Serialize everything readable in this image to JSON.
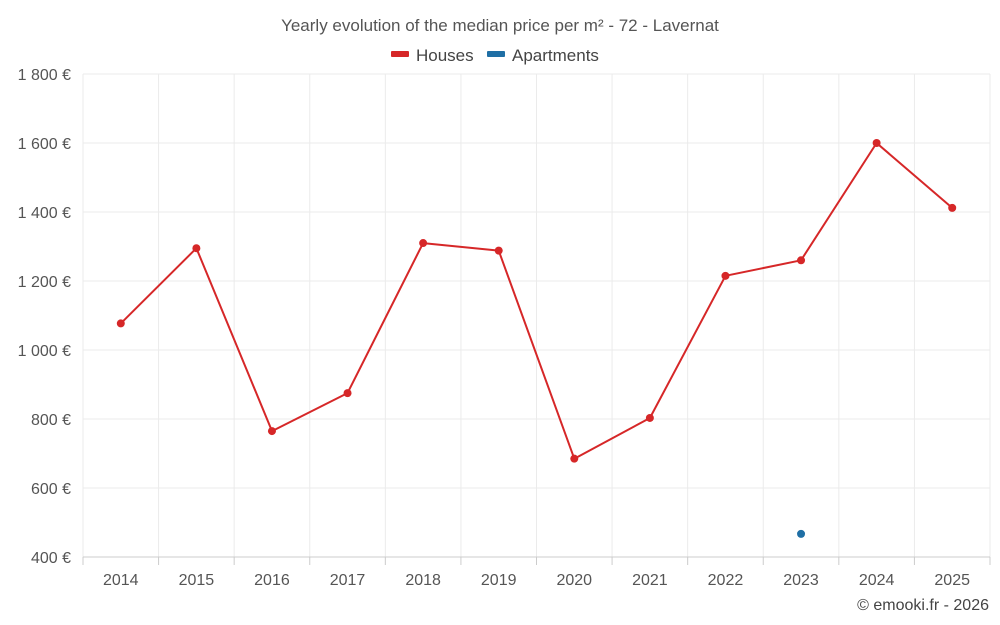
{
  "chart_data": {
    "type": "line",
    "title": "Yearly evolution of the median price per m² - 72 - Lavernat",
    "categories": [
      "2014",
      "2015",
      "2016",
      "2017",
      "2018",
      "2019",
      "2020",
      "2021",
      "2022",
      "2023",
      "2024",
      "2025"
    ],
    "series": [
      {
        "name": "Houses",
        "color": "#d62728",
        "values": [
          1077,
          1295,
          765,
          875,
          1310,
          1288,
          685,
          803,
          1215,
          1260,
          1600,
          1412
        ]
      },
      {
        "name": "Apartments",
        "color": "#1f6fa5",
        "values": [
          null,
          null,
          null,
          null,
          null,
          null,
          null,
          null,
          null,
          467,
          null,
          null
        ]
      }
    ],
    "y_ticks": [
      "400 €",
      "600 €",
      "800 €",
      "1 000 €",
      "1 200 €",
      "1 400 €",
      "1 600 €",
      "1 800 €"
    ],
    "ylim": [
      400,
      1800
    ],
    "grid": true,
    "legend_position": "top-center",
    "credit": "© emooki.fr - 2026"
  }
}
